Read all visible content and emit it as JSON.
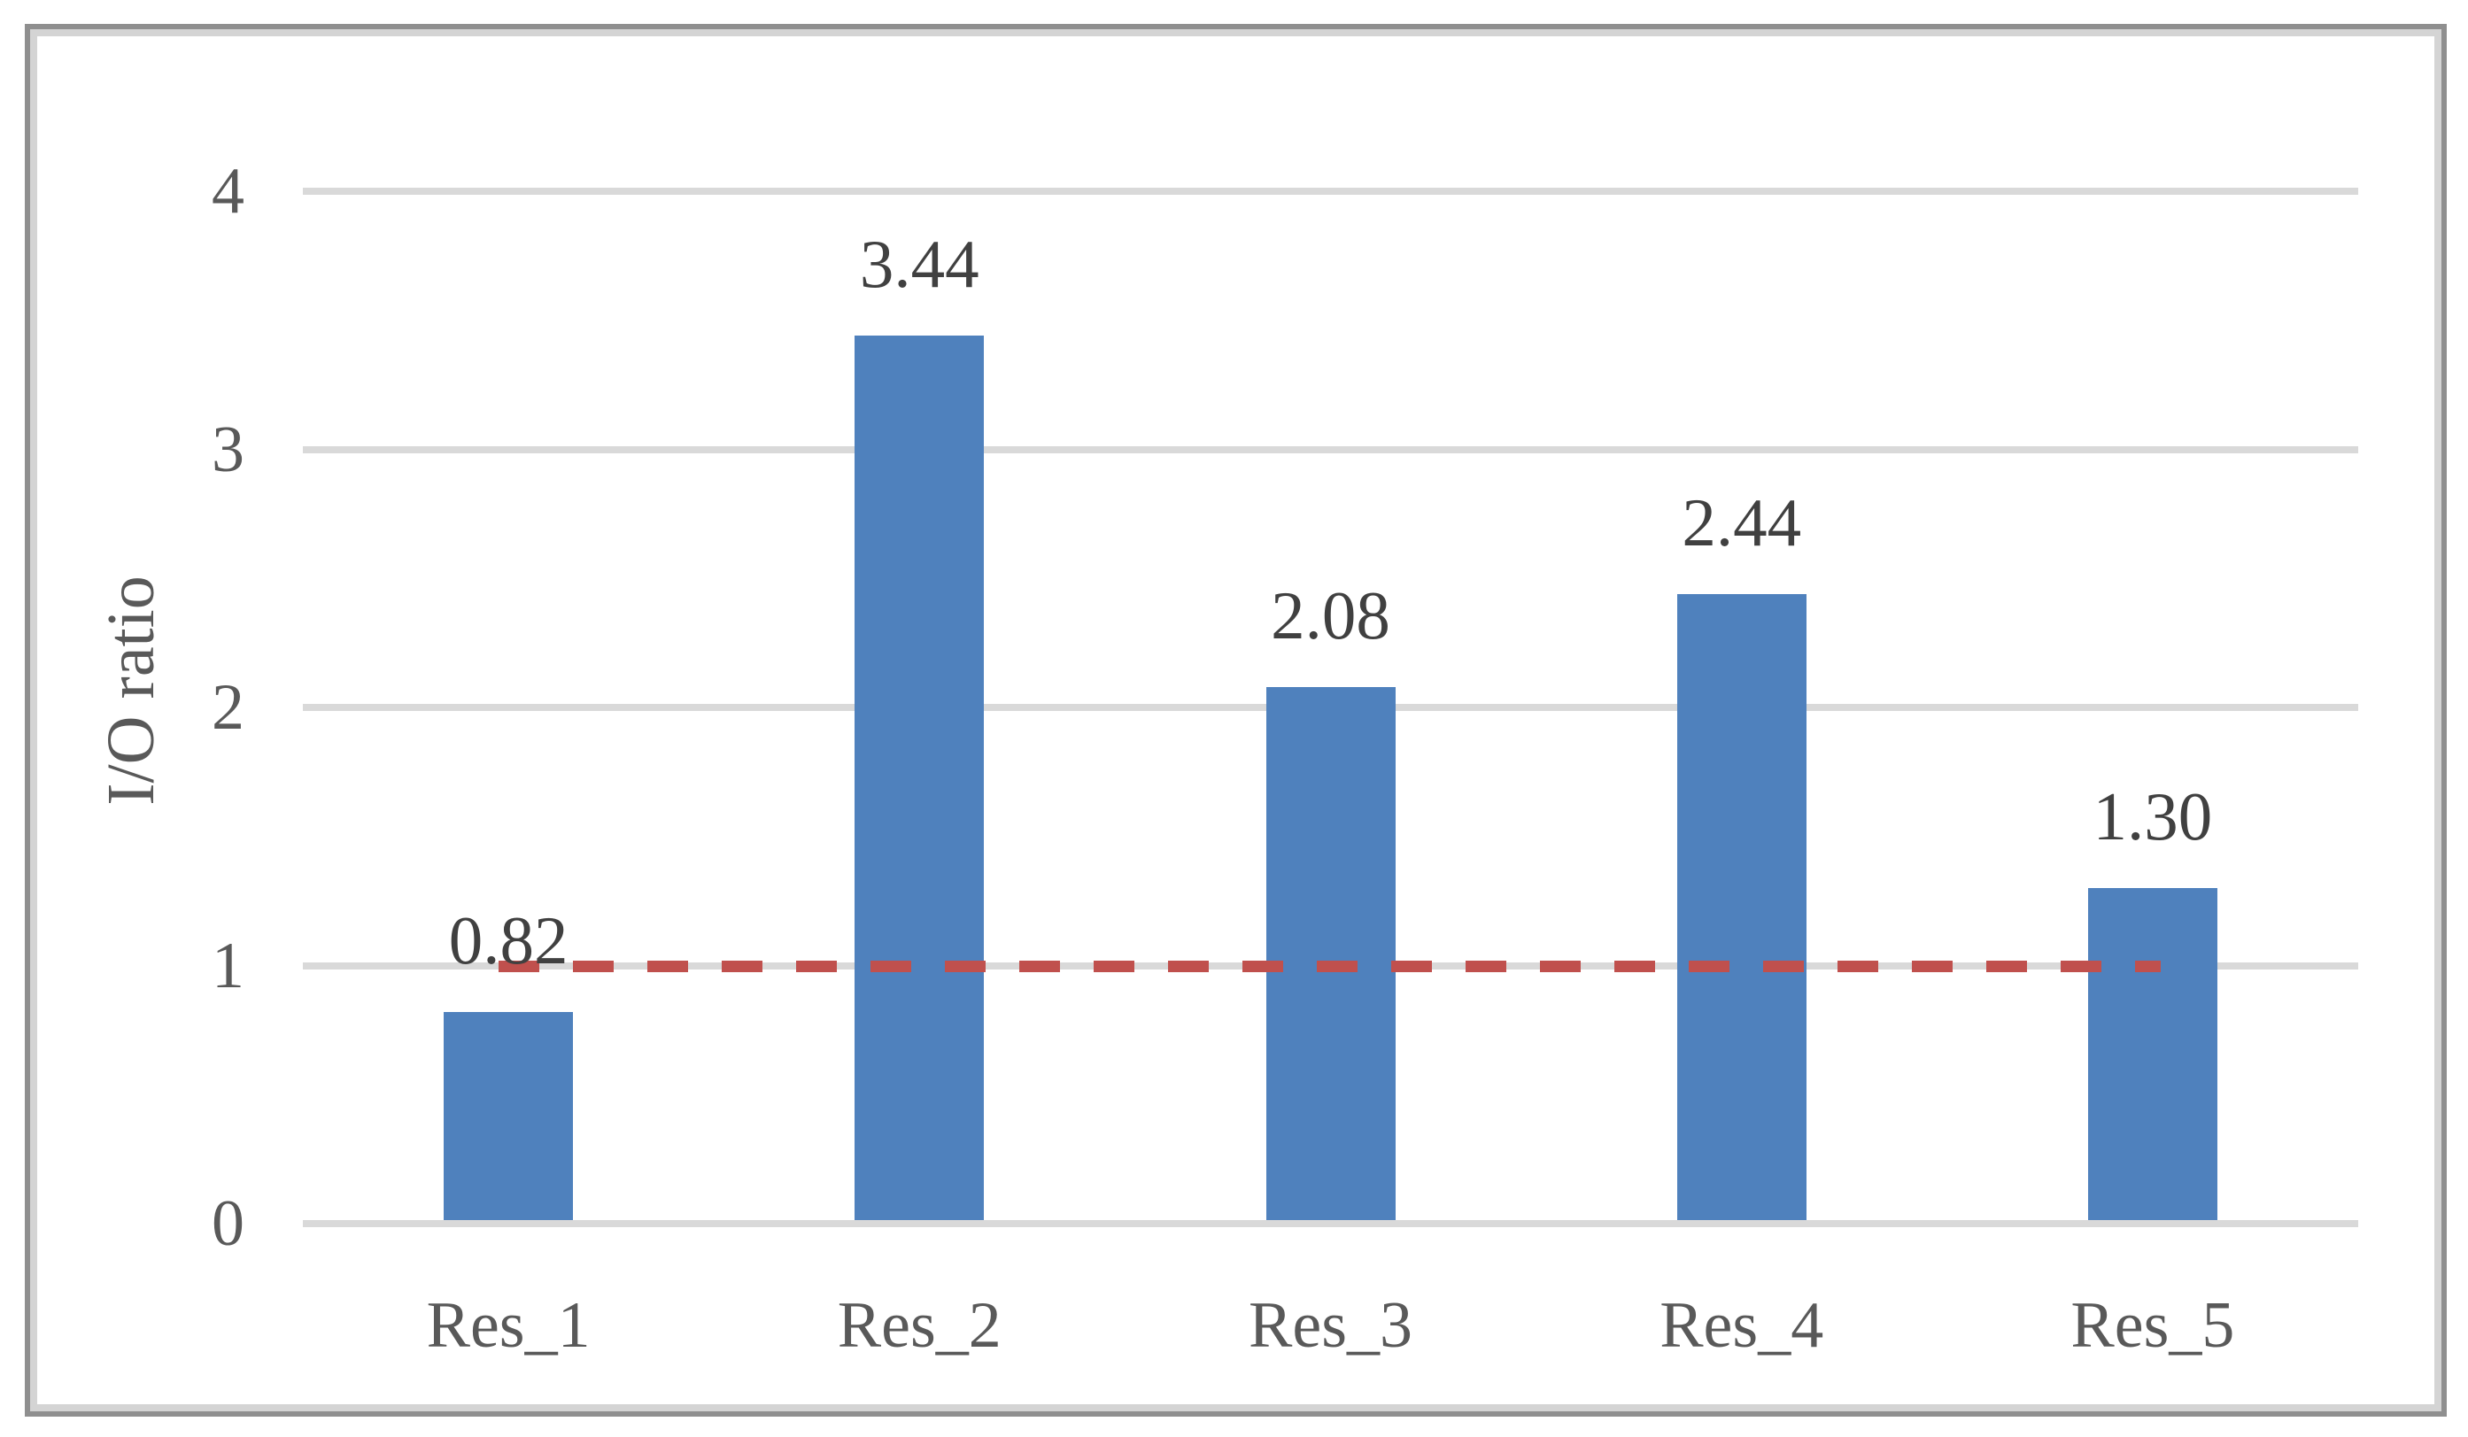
{
  "chart_data": {
    "type": "bar",
    "title": "",
    "categories": [
      "Res_1",
      "Res_2",
      "Res_3",
      "Res_4",
      "Res_5"
    ],
    "values": [
      0.82,
      3.44,
      2.08,
      2.44,
      1.3
    ],
    "data_labels": [
      "0.82",
      "3.44",
      "2.08",
      "2.44",
      "1.30"
    ],
    "xlabel": "",
    "ylabel": "I/O ratio",
    "ylim": [
      0,
      4
    ],
    "yticks": [
      0,
      1,
      2,
      3,
      4
    ],
    "grid": true,
    "legend": "none",
    "bar_color": "#4F81BD",
    "gridline_color": "#D9D9D9",
    "frame_color": "#8f8f8f",
    "data_label_color": "#404040",
    "axis_text_color": "#595959",
    "reference_line": {
      "value": 1,
      "style": "dashed",
      "color": "#C0504D",
      "label": ""
    }
  }
}
